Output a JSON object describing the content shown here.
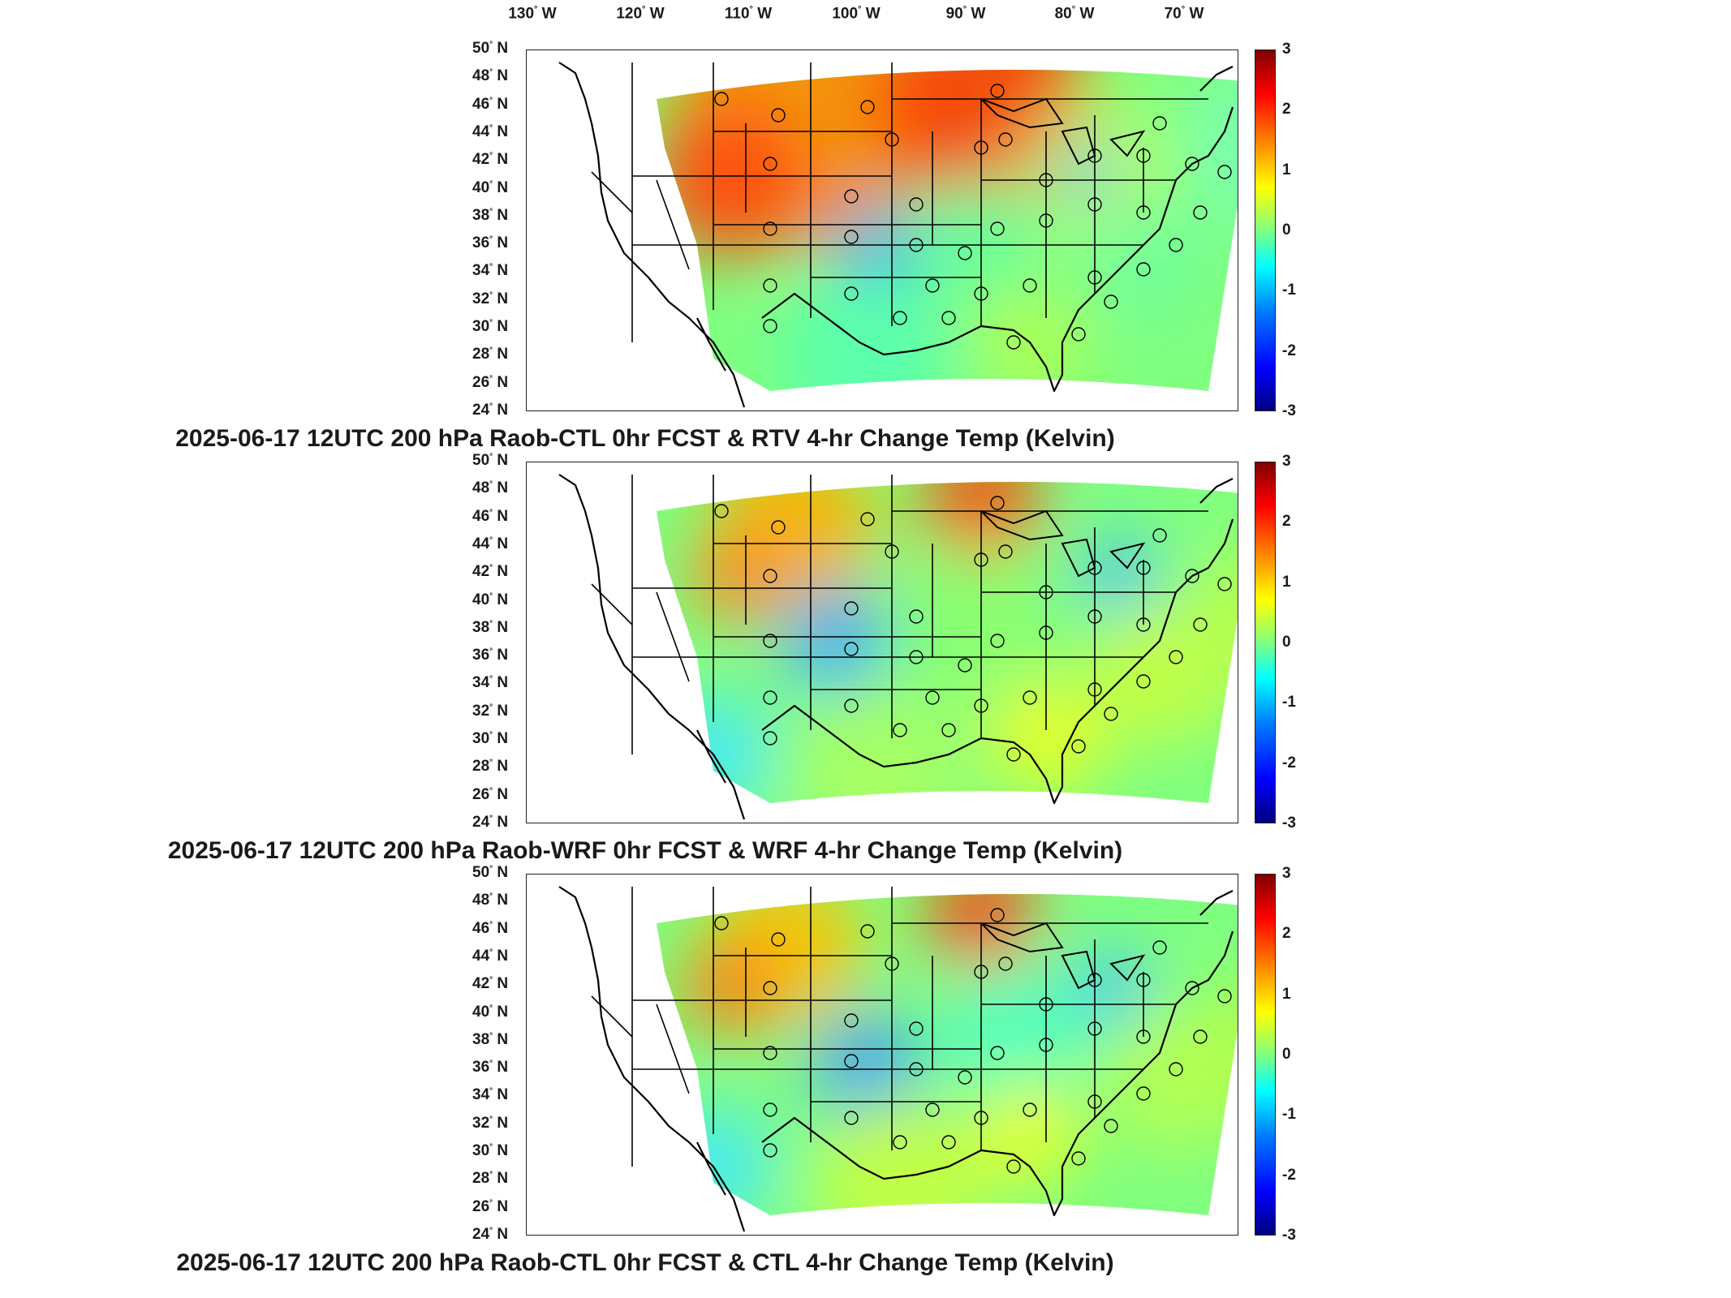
{
  "map": {
    "longitude_labels": [
      "130",
      "120",
      "110",
      "100",
      "90",
      "80",
      "70"
    ],
    "latitude_labels": [
      "50",
      "48",
      "46",
      "44",
      "42",
      "40",
      "38",
      "36",
      "34",
      "32",
      "30",
      "28",
      "26",
      "24"
    ],
    "lon_suffix": "W",
    "lat_suffix": "N",
    "degree_symbol": "°",
    "colorbar_ticks": [
      "3",
      "2",
      "1",
      "0",
      "-1",
      "-2",
      "-3"
    ],
    "colorbar_range": [
      -3,
      3
    ],
    "colormap": "jet"
  },
  "panels": [
    {
      "title": "2025-06-17 12UTC 200 hPa Raob-CTL 0hr FCST & RTV 4-hr Change Temp (Kelvin)",
      "pattern": "rtv"
    },
    {
      "title": "2025-06-17 12UTC 200 hPa Raob-WRF 0hr FCST & WRF 4-hr Change Temp (Kelvin)",
      "pattern": "wrf"
    },
    {
      "title": "2025-06-17 12UTC 200 hPa Raob-CTL 0hr FCST & CTL 4-hr Change Temp (Kelvin)",
      "pattern": "ctl"
    }
  ]
}
